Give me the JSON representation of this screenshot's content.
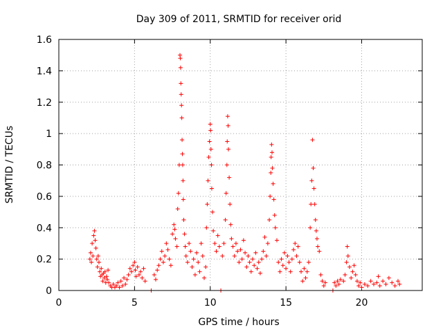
{
  "chart_data": {
    "type": "scatter",
    "title": "Day 309 of 2011, SRMTID for receiver orid",
    "xlabel": "GPS time / hours",
    "ylabel": "SRMTID / TECUs",
    "xlim": [
      0,
      24
    ],
    "ylim": [
      0,
      1.6
    ],
    "x_ticks": [
      0,
      5,
      10,
      15,
      20
    ],
    "x_tick_labels": [
      "0",
      "5",
      "10",
      "15",
      "20"
    ],
    "y_ticks": [
      0,
      0.2,
      0.4,
      0.6,
      0.8,
      1.0,
      1.2,
      1.4,
      1.6
    ],
    "y_tick_labels": [
      "0",
      "0.2",
      "0.4",
      "0.6",
      "0.8",
      "1",
      "1.2",
      "1.4",
      "1.6"
    ],
    "grid": true,
    "marker": "plus",
    "color": "#ff0000",
    "series": [
      {
        "name": "SRMTID",
        "points": [
          [
            2.05,
            0.2
          ],
          [
            2.1,
            0.24
          ],
          [
            2.15,
            0.18
          ],
          [
            2.2,
            0.3
          ],
          [
            2.25,
            0.22
          ],
          [
            2.3,
            0.35
          ],
          [
            2.35,
            0.38
          ],
          [
            2.4,
            0.32
          ],
          [
            2.45,
            0.27
          ],
          [
            2.5,
            0.2
          ],
          [
            2.55,
            0.15
          ],
          [
            2.6,
            0.22
          ],
          [
            2.65,
            0.18
          ],
          [
            2.7,
            0.12
          ],
          [
            2.75,
            0.09
          ],
          [
            2.8,
            0.14
          ],
          [
            2.85,
            0.1
          ],
          [
            2.9,
            0.06
          ],
          [
            2.95,
            0.11
          ],
          [
            3.0,
            0.08
          ],
          [
            3.05,
            0.12
          ],
          [
            3.1,
            0.05
          ],
          [
            3.15,
            0.09
          ],
          [
            3.2,
            0.07
          ],
          [
            3.25,
            0.13
          ],
          [
            3.3,
            0.05
          ],
          [
            3.4,
            0.03
          ],
          [
            3.5,
            0.02
          ],
          [
            3.6,
            0.04
          ],
          [
            3.7,
            0.02
          ],
          [
            3.8,
            0.03
          ],
          [
            3.9,
            0.05
          ],
          [
            4.0,
            0.02
          ],
          [
            4.1,
            0.06
          ],
          [
            4.2,
            0.03
          ],
          [
            4.3,
            0.08
          ],
          [
            4.4,
            0.04
          ],
          [
            4.5,
            0.07
          ],
          [
            4.6,
            0.1
          ],
          [
            4.7,
            0.14
          ],
          [
            4.8,
            0.12
          ],
          [
            4.9,
            0.16
          ],
          [
            5.0,
            0.18
          ],
          [
            5.05,
            0.13
          ],
          [
            5.1,
            0.09
          ],
          [
            5.2,
            0.15
          ],
          [
            5.3,
            0.1
          ],
          [
            5.4,
            0.12
          ],
          [
            5.5,
            0.08
          ],
          [
            5.6,
            0.14
          ],
          [
            5.7,
            0.06
          ],
          [
            6.1,
            0.0
          ],
          [
            6.3,
            0.1
          ],
          [
            6.4,
            0.07
          ],
          [
            6.5,
            0.13
          ],
          [
            6.6,
            0.16
          ],
          [
            6.7,
            0.2
          ],
          [
            6.8,
            0.25
          ],
          [
            6.9,
            0.18
          ],
          [
            7.0,
            0.22
          ],
          [
            7.1,
            0.3
          ],
          [
            7.2,
            0.26
          ],
          [
            7.3,
            0.2
          ],
          [
            7.4,
            0.16
          ],
          [
            7.5,
            0.36
          ],
          [
            7.6,
            0.42
          ],
          [
            7.65,
            0.39
          ],
          [
            7.7,
            0.33
          ],
          [
            7.8,
            0.28
          ],
          [
            7.85,
            0.52
          ],
          [
            7.9,
            0.62
          ],
          [
            7.95,
            0.8
          ],
          [
            8.0,
            1.5
          ],
          [
            8.02,
            1.48
          ],
          [
            8.04,
            1.42
          ],
          [
            8.06,
            1.32
          ],
          [
            8.08,
            1.25
          ],
          [
            8.1,
            1.18
          ],
          [
            8.12,
            1.1
          ],
          [
            8.14,
            0.96
          ],
          [
            8.16,
            0.87
          ],
          [
            8.18,
            0.8
          ],
          [
            8.2,
            0.7
          ],
          [
            8.22,
            0.58
          ],
          [
            8.25,
            0.45
          ],
          [
            8.3,
            0.36
          ],
          [
            8.35,
            0.28
          ],
          [
            8.4,
            0.22
          ],
          [
            8.5,
            0.18
          ],
          [
            8.6,
            0.3
          ],
          [
            8.7,
            0.25
          ],
          [
            8.8,
            0.15
          ],
          [
            8.9,
            0.2
          ],
          [
            9.0,
            0.1
          ],
          [
            9.1,
            0.24
          ],
          [
            9.2,
            0.18
          ],
          [
            9.3,
            0.12
          ],
          [
            9.4,
            0.3
          ],
          [
            9.5,
            0.22
          ],
          [
            9.6,
            0.08
          ],
          [
            9.7,
            0.15
          ],
          [
            9.75,
            0.4
          ],
          [
            9.8,
            0.55
          ],
          [
            9.85,
            0.7
          ],
          [
            9.9,
            0.85
          ],
          [
            9.95,
            0.95
          ],
          [
            10.0,
            1.06
          ],
          [
            10.02,
            1.02
          ],
          [
            10.05,
            0.9
          ],
          [
            10.08,
            0.8
          ],
          [
            10.1,
            0.65
          ],
          [
            10.15,
            0.5
          ],
          [
            10.2,
            0.38
          ],
          [
            10.3,
            0.3
          ],
          [
            10.4,
            0.25
          ],
          [
            10.5,
            0.35
          ],
          [
            10.6,
            0.28
          ],
          [
            10.7,
            0.0
          ],
          [
            10.8,
            0.22
          ],
          [
            10.9,
            0.3
          ],
          [
            11.0,
            0.45
          ],
          [
            11.05,
            0.62
          ],
          [
            11.1,
            0.8
          ],
          [
            11.12,
            0.95
          ],
          [
            11.15,
            1.11
          ],
          [
            11.18,
            1.05
          ],
          [
            11.2,
            0.9
          ],
          [
            11.25,
            0.72
          ],
          [
            11.3,
            0.55
          ],
          [
            11.35,
            0.42
          ],
          [
            11.4,
            0.33
          ],
          [
            11.5,
            0.28
          ],
          [
            11.6,
            0.22
          ],
          [
            11.7,
            0.3
          ],
          [
            11.8,
            0.25
          ],
          [
            11.9,
            0.18
          ],
          [
            12.0,
            0.26
          ],
          [
            12.1,
            0.2
          ],
          [
            12.2,
            0.32
          ],
          [
            12.3,
            0.24
          ],
          [
            12.4,
            0.15
          ],
          [
            12.5,
            0.22
          ],
          [
            12.6,
            0.18
          ],
          [
            12.7,
            0.12
          ],
          [
            12.8,
            0.2
          ],
          [
            12.9,
            0.16
          ],
          [
            13.0,
            0.24
          ],
          [
            13.1,
            0.14
          ],
          [
            13.2,
            0.18
          ],
          [
            13.3,
            0.11
          ],
          [
            13.4,
            0.2
          ],
          [
            13.5,
            0.25
          ],
          [
            13.6,
            0.34
          ],
          [
            13.7,
            0.22
          ],
          [
            13.8,
            0.3
          ],
          [
            13.9,
            0.45
          ],
          [
            13.95,
            0.6
          ],
          [
            14.0,
            0.75
          ],
          [
            14.02,
            0.85
          ],
          [
            14.05,
            0.93
          ],
          [
            14.08,
            0.88
          ],
          [
            14.1,
            0.78
          ],
          [
            14.15,
            0.68
          ],
          [
            14.2,
            0.58
          ],
          [
            14.25,
            0.48
          ],
          [
            14.3,
            0.4
          ],
          [
            14.4,
            0.32
          ],
          [
            14.5,
            0.18
          ],
          [
            14.6,
            0.12
          ],
          [
            14.7,
            0.2
          ],
          [
            14.8,
            0.16
          ],
          [
            14.9,
            0.24
          ],
          [
            15.0,
            0.14
          ],
          [
            15.1,
            0.22
          ],
          [
            15.2,
            0.18
          ],
          [
            15.3,
            0.12
          ],
          [
            15.4,
            0.2
          ],
          [
            15.5,
            0.26
          ],
          [
            15.6,
            0.3
          ],
          [
            15.7,
            0.22
          ],
          [
            15.8,
            0.28
          ],
          [
            15.9,
            0.18
          ],
          [
            16.0,
            0.12
          ],
          [
            16.1,
            0.06
          ],
          [
            16.2,
            0.14
          ],
          [
            16.3,
            0.08
          ],
          [
            16.4,
            0.12
          ],
          [
            16.5,
            0.18
          ],
          [
            16.6,
            0.4
          ],
          [
            16.65,
            0.55
          ],
          [
            16.7,
            0.7
          ],
          [
            16.75,
            0.96
          ],
          [
            16.8,
            0.78
          ],
          [
            16.85,
            0.65
          ],
          [
            16.9,
            0.55
          ],
          [
            16.95,
            0.45
          ],
          [
            17.0,
            0.38
          ],
          [
            17.05,
            0.33
          ],
          [
            17.1,
            0.28
          ],
          [
            17.2,
            0.25
          ],
          [
            17.3,
            0.1
          ],
          [
            17.4,
            0.06
          ],
          [
            17.5,
            0.03
          ],
          [
            17.6,
            0.05
          ],
          [
            18.1,
            0.0
          ],
          [
            18.2,
            0.05
          ],
          [
            18.3,
            0.03
          ],
          [
            18.4,
            0.06
          ],
          [
            18.5,
            0.04
          ],
          [
            18.6,
            0.07
          ],
          [
            18.8,
            0.06
          ],
          [
            18.9,
            0.1
          ],
          [
            19.0,
            0.18
          ],
          [
            19.05,
            0.28
          ],
          [
            19.1,
            0.22
          ],
          [
            19.2,
            0.15
          ],
          [
            19.3,
            0.08
          ],
          [
            19.4,
            0.12
          ],
          [
            19.5,
            0.16
          ],
          [
            19.6,
            0.1
          ],
          [
            19.7,
            0.06
          ],
          [
            19.8,
            0.03
          ],
          [
            19.9,
            0.05
          ],
          [
            20.0,
            0.02
          ],
          [
            20.2,
            0.04
          ],
          [
            20.4,
            0.03
          ],
          [
            20.6,
            0.06
          ],
          [
            20.8,
            0.04
          ],
          [
            21.0,
            0.05
          ],
          [
            21.1,
            0.09
          ],
          [
            21.2,
            0.03
          ],
          [
            21.4,
            0.06
          ],
          [
            21.6,
            0.04
          ],
          [
            21.8,
            0.08
          ],
          [
            22.0,
            0.05
          ],
          [
            22.2,
            0.03
          ],
          [
            22.4,
            0.06
          ],
          [
            22.5,
            0.04
          ]
        ]
      }
    ]
  }
}
